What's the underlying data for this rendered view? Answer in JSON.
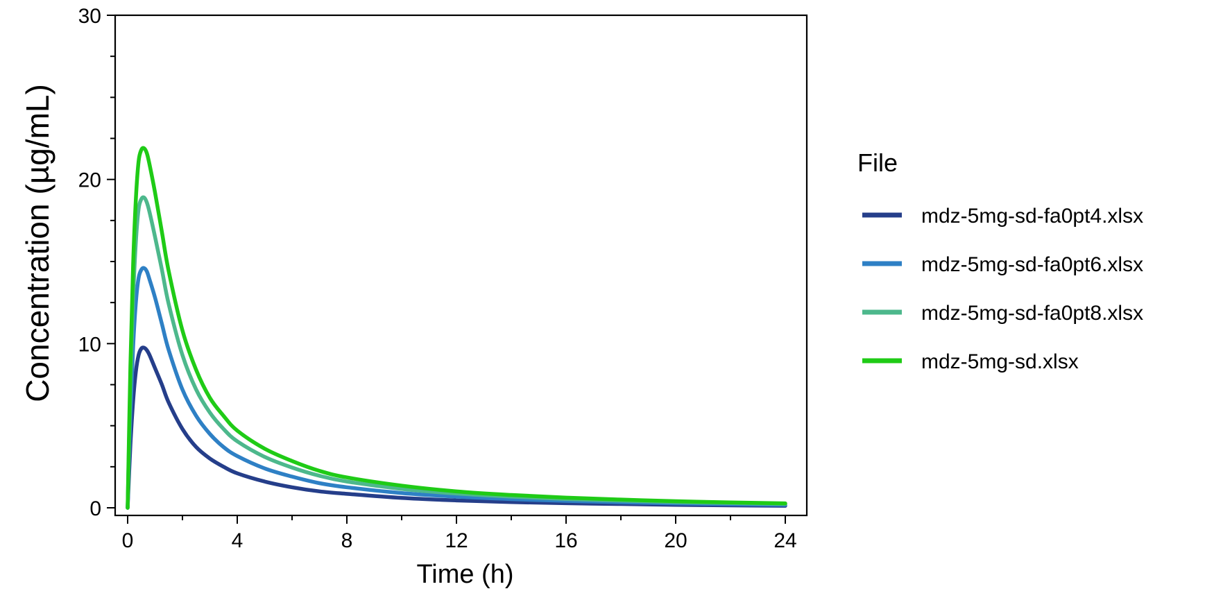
{
  "chart_data": {
    "type": "line",
    "xlabel": "Time (h)",
    "ylabel": "Concentration (µg/mL)",
    "xlim": [
      0,
      24
    ],
    "ylim": [
      0,
      30
    ],
    "x_ticks": [
      0,
      4,
      8,
      12,
      16,
      20,
      24
    ],
    "x_tick_labels": [
      "0",
      "4",
      "8",
      "12",
      "16",
      "20",
      "24"
    ],
    "y_ticks": [
      0,
      10,
      20,
      30
    ],
    "y_tick_labels": [
      "0",
      "10",
      "20",
      "30"
    ],
    "grid": false,
    "legend": {
      "title": "File",
      "placement": "right"
    },
    "x": [
      0,
      0.1,
      0.2,
      0.3,
      0.4,
      0.5,
      0.6,
      0.7,
      0.8,
      1,
      1.25,
      1.5,
      2,
      2.5,
      3,
      3.5,
      4,
      5,
      6,
      7,
      8,
      10,
      12,
      14,
      16,
      18,
      20,
      22,
      24
    ],
    "series": [
      {
        "name": "mdz-5mg-sd-fa0pt4.xlsx",
        "color": "#253E8A",
        "values": [
          0,
          3.8,
          6.5,
          8.3,
          9.3,
          9.7,
          9.75,
          9.6,
          9.3,
          8.5,
          7.5,
          6.4,
          4.8,
          3.7,
          3.0,
          2.5,
          2.1,
          1.6,
          1.25,
          1.0,
          0.85,
          0.6,
          0.45,
          0.35,
          0.28,
          0.23,
          0.18,
          0.15,
          0.12
        ]
      },
      {
        "name": "mdz-5mg-sd-fa0pt6.xlsx",
        "color": "#2E80C5",
        "values": [
          0,
          5.7,
          9.8,
          12.5,
          14.0,
          14.5,
          14.6,
          14.4,
          13.9,
          12.8,
          11.2,
          9.6,
          7.2,
          5.6,
          4.5,
          3.7,
          3.15,
          2.4,
          1.9,
          1.5,
          1.25,
          0.9,
          0.68,
          0.53,
          0.42,
          0.34,
          0.27,
          0.22,
          0.18
        ]
      },
      {
        "name": "mdz-5mg-sd-fa0pt8.xlsx",
        "color": "#4DB88C",
        "values": [
          0,
          7.4,
          12.7,
          16.2,
          18.2,
          18.8,
          18.9,
          18.6,
          18.0,
          16.5,
          14.5,
          12.4,
          9.3,
          7.2,
          5.8,
          4.8,
          4.05,
          3.1,
          2.45,
          1.95,
          1.6,
          1.15,
          0.87,
          0.68,
          0.54,
          0.44,
          0.35,
          0.29,
          0.24
        ]
      },
      {
        "name": "mdz-5mg-sd.xlsx",
        "color": "#1FCB16",
        "values": [
          0,
          8.6,
          14.8,
          18.8,
          21.1,
          21.8,
          21.9,
          21.6,
          20.9,
          19.2,
          16.8,
          14.4,
          10.8,
          8.4,
          6.7,
          5.6,
          4.7,
          3.6,
          2.85,
          2.25,
          1.85,
          1.35,
          1.0,
          0.78,
          0.62,
          0.5,
          0.4,
          0.33,
          0.27
        ]
      }
    ]
  }
}
